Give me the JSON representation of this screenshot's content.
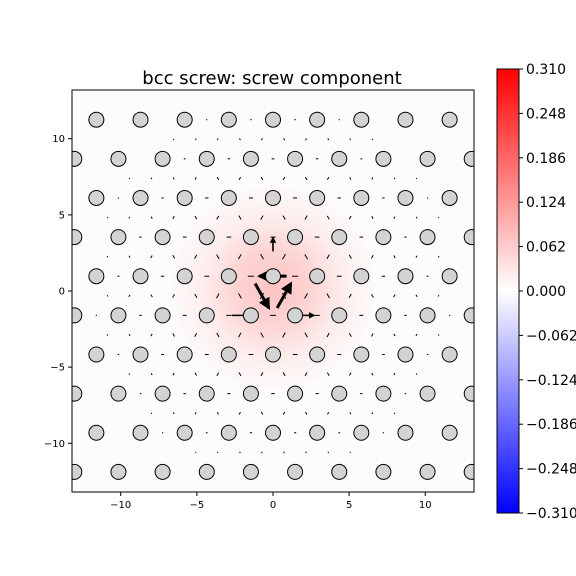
{
  "chart_data": {
    "type": "scatter",
    "title": "bcc screw: screw component",
    "xlabel": "",
    "ylabel": "",
    "xlim": [
      -13.2,
      13.2
    ],
    "ylim": [
      -13.2,
      13.2
    ],
    "x_ticks": [
      -10,
      -5,
      0,
      5,
      10
    ],
    "y_ticks": [
      -10,
      -5,
      0,
      5,
      10
    ],
    "x_tick_labels": [
      "−10",
      "−5",
      "0",
      "5",
      "10"
    ],
    "y_tick_labels": [
      "−10",
      "−5",
      "0",
      "5",
      "10"
    ],
    "grid": false,
    "lattice": {
      "a1": [
        2.9,
        0
      ],
      "a2": [
        1.45,
        2.51
      ],
      "offset": [
        1.45,
        0.84
      ],
      "rows": [
        -6,
        6
      ],
      "cols": [
        -10,
        10
      ]
    },
    "field": {
      "center": [
        0,
        0.2
      ],
      "peak": 0.25,
      "sigma": 3.2
    },
    "core_arrows": [
      {
        "from": [
          1.45,
          0.98
        ],
        "to": [
          -1.45,
          0.98
        ]
      },
      {
        "from": [
          -1.45,
          0.98
        ],
        "to": [
          0,
          -1.6
        ]
      },
      {
        "from": [
          0,
          -1.6
        ],
        "to": [
          1.45,
          0.98
        ]
      },
      {
        "from": [
          1.6,
          -1.6
        ],
        "to": [
          2.7,
          -1.6
        ]
      },
      {
        "from": [
          -2.7,
          -1.6
        ],
        "to": [
          -1.6,
          -1.6
        ]
      },
      {
        "from": [
          0,
          2.6
        ],
        "to": [
          0,
          3.5
        ]
      }
    ],
    "colorbar": {
      "min": -0.31,
      "max": 0.31,
      "colormap": "bwr",
      "ticks": [
        "0.310",
        "0.248",
        "0.186",
        "0.124",
        "0.062",
        "0.000",
        "−0.062",
        "−0.124",
        "−0.186",
        "−0.248",
        "−0.310"
      ]
    },
    "colors": {
      "atom_fill": "#d3d3d3",
      "atom_edge": "#000000",
      "arrow": "#000000",
      "positive": "#ff0000",
      "negative": "#0000ff"
    }
  }
}
